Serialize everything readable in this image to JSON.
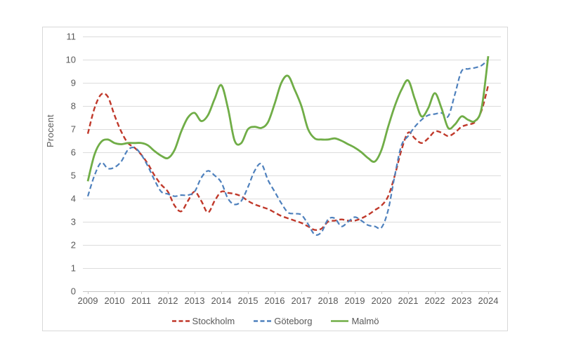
{
  "chart_data": {
    "type": "line",
    "title": "",
    "ylabel": "Procent",
    "ylim": [
      0,
      11
    ],
    "ytick_step": 1,
    "yticks": [
      0,
      1,
      2,
      3,
      4,
      5,
      6,
      7,
      8,
      9,
      10,
      11
    ],
    "xticks": [
      2009,
      2010,
      2011,
      2012,
      2013,
      2014,
      2015,
      2016,
      2017,
      2018,
      2019,
      2020,
      2021,
      2022,
      2023,
      2024
    ],
    "grid": "horizontal",
    "legend_position": "bottom",
    "colors": {
      "grid": "#dcdcdc",
      "axis": "#c6c6c6",
      "text": "#595959",
      "border": "#d8d8d8"
    },
    "x": [
      2009.0,
      2009.25,
      2009.5,
      2009.75,
      2010.0,
      2010.25,
      2010.5,
      2010.75,
      2011.0,
      2011.25,
      2011.5,
      2011.75,
      2012.0,
      2012.25,
      2012.5,
      2012.75,
      2013.0,
      2013.25,
      2013.5,
      2013.75,
      2014.0,
      2014.25,
      2014.5,
      2014.75,
      2015.0,
      2015.25,
      2015.5,
      2015.75,
      2016.0,
      2016.25,
      2016.5,
      2016.75,
      2017.0,
      2017.25,
      2017.5,
      2017.75,
      2018.0,
      2018.25,
      2018.5,
      2018.75,
      2019.0,
      2019.25,
      2019.5,
      2019.75,
      2020.0,
      2020.25,
      2020.5,
      2020.75,
      2021.0,
      2021.25,
      2021.5,
      2021.75,
      2022.0,
      2022.25,
      2022.5,
      2022.75,
      2023.0,
      2023.25,
      2023.5,
      2023.75,
      2024.0
    ],
    "series": [
      {
        "name": "Stockholm",
        "color": "#c0392b",
        "line_style": "dashed",
        "values": [
          6.8,
          7.9,
          8.5,
          8.4,
          7.6,
          6.9,
          6.4,
          6.2,
          5.9,
          5.5,
          5.0,
          4.6,
          4.3,
          3.7,
          3.45,
          3.9,
          4.3,
          3.9,
          3.4,
          3.9,
          4.3,
          4.25,
          4.2,
          4.1,
          3.9,
          3.75,
          3.65,
          3.55,
          3.4,
          3.25,
          3.15,
          3.05,
          2.95,
          2.8,
          2.65,
          2.7,
          3.0,
          3.05,
          3.1,
          3.05,
          3.05,
          3.15,
          3.3,
          3.5,
          3.7,
          4.1,
          5.0,
          6.1,
          6.85,
          6.6,
          6.4,
          6.6,
          6.9,
          6.85,
          6.7,
          6.85,
          7.1,
          7.2,
          7.3,
          7.8,
          8.9
        ]
      },
      {
        "name": "Göteborg",
        "color": "#4f81bd",
        "line_style": "dashed",
        "values": [
          4.1,
          5.0,
          5.55,
          5.3,
          5.35,
          5.6,
          6.1,
          6.2,
          5.9,
          5.4,
          4.8,
          4.3,
          4.2,
          4.1,
          4.15,
          4.15,
          4.3,
          4.9,
          5.2,
          5.0,
          4.7,
          4.0,
          3.75,
          3.9,
          4.5,
          5.2,
          5.5,
          4.8,
          4.3,
          3.8,
          3.4,
          3.35,
          3.3,
          2.9,
          2.45,
          2.55,
          3.1,
          3.15,
          2.8,
          3.0,
          3.2,
          3.05,
          2.85,
          2.8,
          2.75,
          3.5,
          5.0,
          6.3,
          6.7,
          7.1,
          7.4,
          7.6,
          7.65,
          7.7,
          7.55,
          8.5,
          9.5,
          9.6,
          9.65,
          9.75,
          10.0
        ]
      },
      {
        "name": "Malmö",
        "color": "#70ad47",
        "line_style": "solid",
        "values": [
          4.75,
          5.9,
          6.45,
          6.55,
          6.4,
          6.35,
          6.4,
          6.4,
          6.4,
          6.3,
          6.05,
          5.85,
          5.75,
          6.1,
          6.9,
          7.5,
          7.7,
          7.35,
          7.6,
          8.3,
          8.9,
          7.9,
          6.5,
          6.4,
          7.0,
          7.1,
          7.05,
          7.3,
          8.1,
          9.0,
          9.3,
          8.7,
          8.0,
          7.0,
          6.6,
          6.55,
          6.55,
          6.6,
          6.5,
          6.35,
          6.2,
          6.0,
          5.75,
          5.6,
          6.1,
          7.1,
          8.0,
          8.7,
          9.1,
          8.3,
          7.55,
          7.9,
          8.55,
          7.9,
          7.05,
          7.2,
          7.55,
          7.4,
          7.35,
          7.9,
          10.15
        ]
      }
    ]
  }
}
